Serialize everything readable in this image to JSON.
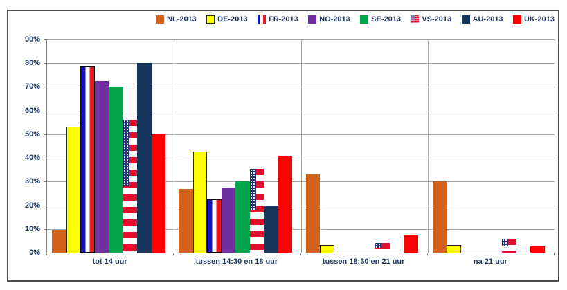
{
  "chart_data": {
    "type": "bar",
    "title": "",
    "categories": [
      "tot 14 uur",
      "tussen 14:30 en 18 uur",
      "tussen 18:30 en 21 uur",
      "na 21 uur"
    ],
    "series": [
      {
        "name": "NL-2013",
        "style": "solid",
        "color": "#d2611c",
        "values": [
          9.5,
          27,
          33,
          30
        ]
      },
      {
        "name": "DE-2013",
        "style": "outlined",
        "color": "#ffff00",
        "values": [
          53,
          42.5,
          3,
          3
        ]
      },
      {
        "name": "FR-2013",
        "style": "flag-fr",
        "color": "#1414b8",
        "values": [
          78,
          22,
          0,
          0
        ]
      },
      {
        "name": "NO-2013",
        "style": "solid",
        "color": "#7030a0",
        "values": [
          72.5,
          27.5,
          0,
          0
        ]
      },
      {
        "name": "SE-2013",
        "style": "solid",
        "color": "#00a44a",
        "values": [
          70,
          30,
          0,
          0
        ]
      },
      {
        "name": "VS-2013",
        "style": "flag-us",
        "color": "#e0102c",
        "values": [
          56,
          35.5,
          4,
          6
        ]
      },
      {
        "name": "AU-2013",
        "style": "solid",
        "color": "#17375e",
        "values": [
          80,
          20,
          0,
          0
        ]
      },
      {
        "name": "UK-2013",
        "style": "solid",
        "color": "#ff0000",
        "values": [
          50,
          40.5,
          7.5,
          2.5
        ]
      }
    ],
    "xlabel": "",
    "ylabel": "",
    "ylim": [
      0,
      90
    ],
    "ytick_step": 10,
    "ytick_labels": [
      "0%",
      "10%",
      "20%",
      "30%",
      "40%",
      "50%",
      "60%",
      "70%",
      "80%",
      "90%"
    ],
    "grid": true,
    "legend_position": "top"
  },
  "styles": {
    "text_color": "#1f3864",
    "grid_color": "#a6a6a6",
    "axis_color": "#7f7f7f",
    "frame_border_color": "#4d4d4d"
  }
}
